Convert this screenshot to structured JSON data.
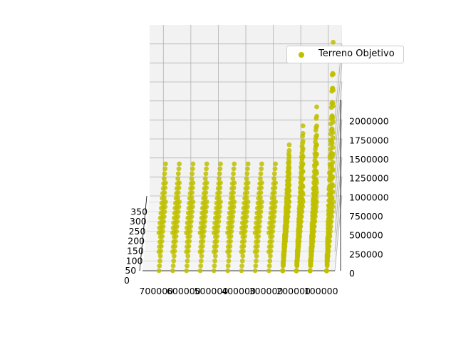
{
  "chart_data": {
    "type": "scatter",
    "view": "3d",
    "series": [
      {
        "name": "Terreno Objetivo",
        "color": "#bfbf00"
      }
    ],
    "x_axis": {
      "ticks": [
        "700000",
        "600000",
        "500000",
        "400000",
        "300000",
        "200000",
        "100000"
      ],
      "lim": [
        50000,
        750000
      ]
    },
    "y_axis": {
      "ticks": [
        "0",
        "50",
        "100",
        "150",
        "200",
        "250",
        "300",
        "350"
      ],
      "lim": [
        0,
        380
      ]
    },
    "z_axis": {
      "ticks": [
        "0",
        "250000",
        "500000",
        "750000",
        "1000000",
        "1250000",
        "1500000",
        "1750000",
        "2000000"
      ],
      "lim": [
        0,
        2250000
      ]
    },
    "grid": true,
    "legend_position": "top-right",
    "columns": [
      {
        "x": 690000,
        "z_top": 500000
      },
      {
        "x": 640000,
        "z_top": 500000
      },
      {
        "x": 590000,
        "z_top": 500000
      },
      {
        "x": 540000,
        "z_top": 500000
      },
      {
        "x": 490000,
        "z_top": 500000
      },
      {
        "x": 440000,
        "z_top": 500000
      },
      {
        "x": 390000,
        "z_top": 500000
      },
      {
        "x": 340000,
        "z_top": 500000
      },
      {
        "x": 290000,
        "z_top": 500000
      },
      {
        "x": 240000,
        "z_top": 750000
      },
      {
        "x": 190000,
        "z_top": 1000000
      },
      {
        "x": 140000,
        "z_top": 1250000
      },
      {
        "x": 80000,
        "z_top": 2100000
      }
    ],
    "y_range": [
      0,
      350
    ]
  }
}
